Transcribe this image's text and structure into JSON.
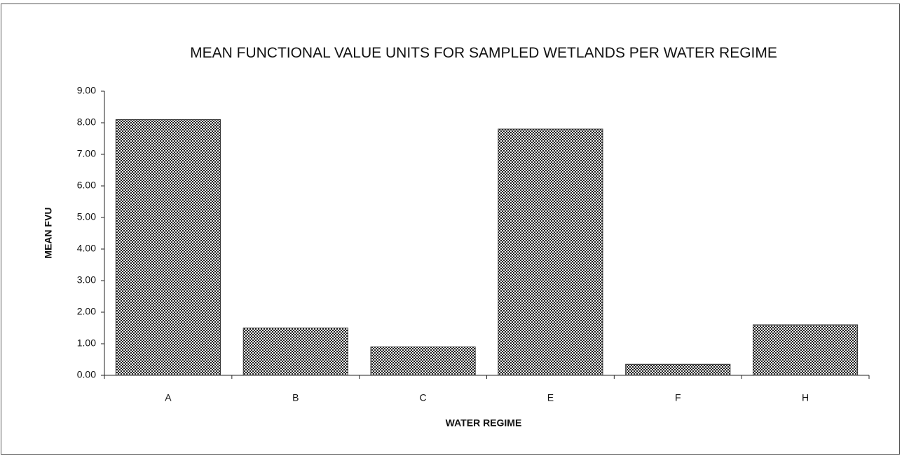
{
  "chart_data": {
    "type": "bar",
    "title": "MEAN FUNCTIONAL VALUE UNITS FOR SAMPLED WETLANDS PER WATER REGIME",
    "xlabel": "WATER REGIME",
    "ylabel": "MEAN FVU",
    "categories": [
      "A",
      "B",
      "C",
      "E",
      "F",
      "H"
    ],
    "values": [
      8.1,
      1.5,
      0.9,
      7.8,
      0.35,
      1.6
    ],
    "color": "#333333",
    "ylim": [
      0,
      9
    ],
    "yticks": [
      {
        "value": 0,
        "label": "0.00"
      },
      {
        "value": 1,
        "label": "1.00"
      },
      {
        "value": 2,
        "label": "2.00"
      },
      {
        "value": 3,
        "label": "3.00"
      },
      {
        "value": 4,
        "label": "4.00"
      },
      {
        "value": 5,
        "label": "5.00"
      },
      {
        "value": 6,
        "label": "6.00"
      },
      {
        "value": 7,
        "label": "7.00"
      },
      {
        "value": 8,
        "label": "8.00"
      },
      {
        "value": 9,
        "label": "9.00"
      }
    ],
    "grid": false
  }
}
